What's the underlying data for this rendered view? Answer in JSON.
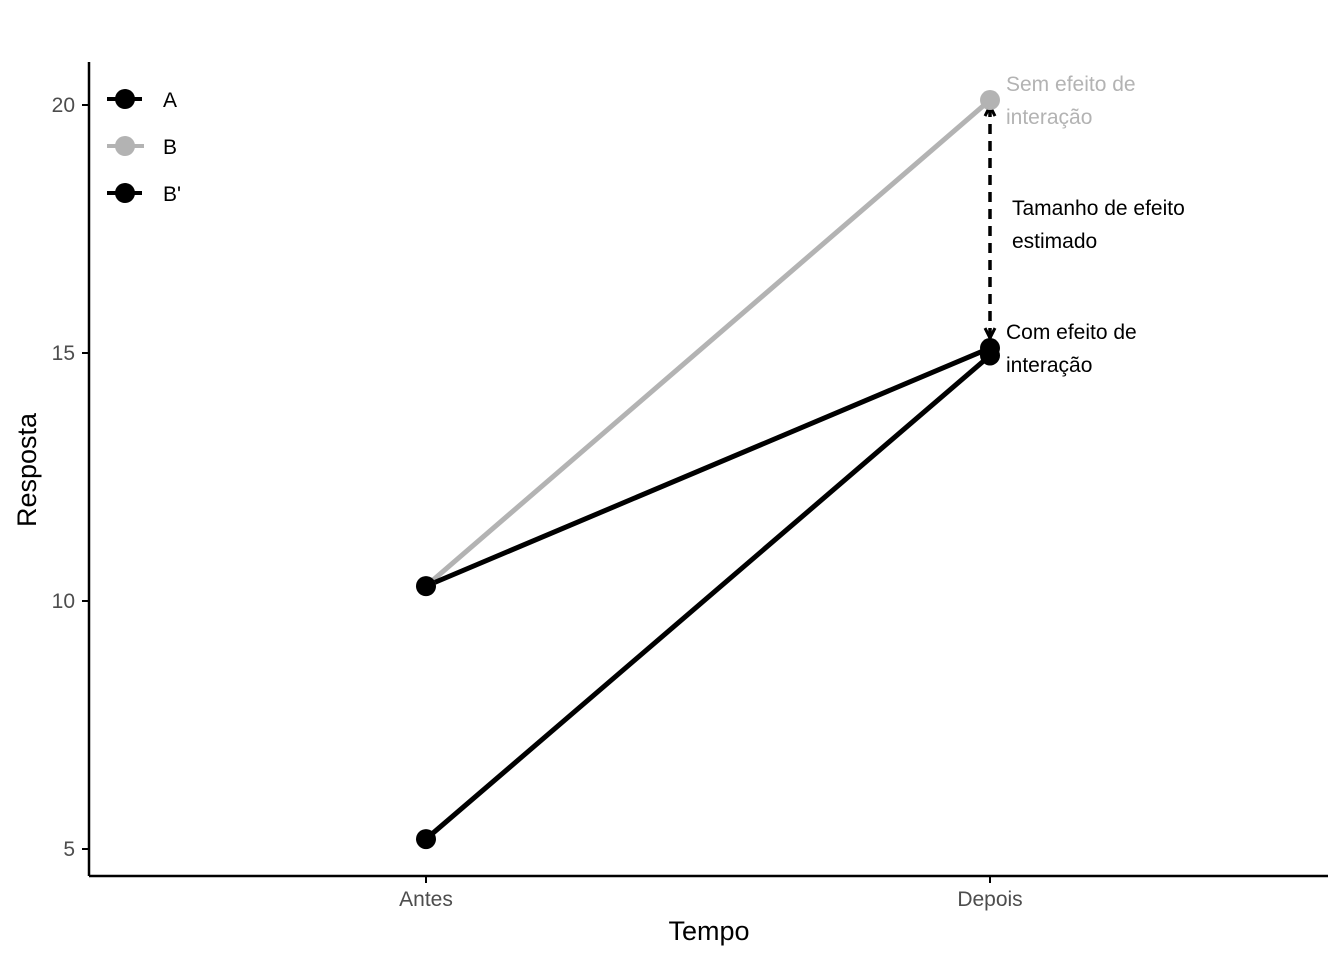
{
  "chart_data": {
    "type": "line",
    "title": "",
    "xlabel": "Tempo",
    "ylabel": "Resposta",
    "categories": [
      "Antes",
      "Depois"
    ],
    "ylim": [
      4.5,
      21
    ],
    "yticks": [
      5,
      10,
      15,
      20
    ],
    "grid": false,
    "legend_position": "top-left",
    "series": [
      {
        "name": "A",
        "values": [
          5.2,
          14.95
        ],
        "color": "#000000",
        "dashed_legend": true
      },
      {
        "name": "B",
        "values": [
          10.3,
          20.1
        ],
        "color": "#b3b3b3",
        "dashed_legend": false
      },
      {
        "name": "B'",
        "values": [
          10.3,
          15.1
        ],
        "color": "#000000",
        "dashed_legend": true
      }
    ],
    "annotations": {
      "no_interaction": {
        "line1": "Sem efeito de",
        "line2": "interação",
        "color": "#b3b3b3"
      },
      "effect_size": {
        "line1": "Tamanho de efeito",
        "line2": "estimado",
        "color": "#000000"
      },
      "with_interaction": {
        "line1": "Com efeito de",
        "line2": "interação",
        "color": "#000000"
      },
      "arrow": {
        "from": 15.1,
        "to": 20.1,
        "category": "Depois",
        "style": "dashed"
      }
    }
  }
}
